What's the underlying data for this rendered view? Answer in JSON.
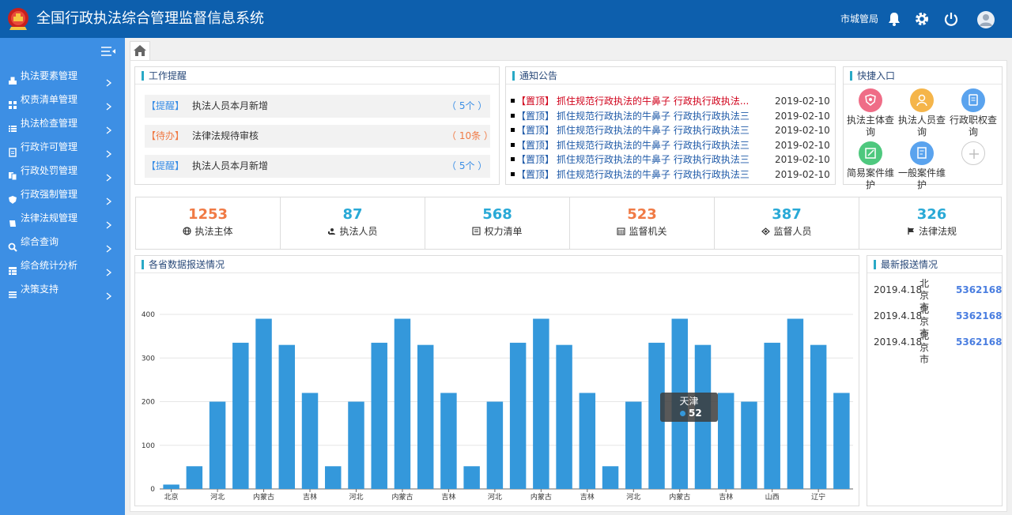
{
  "header": {
    "title": "全国行政执法综合管理监督信息系统",
    "user": "市城管局"
  },
  "sidebar": {
    "items": [
      {
        "label": "执法要素管理",
        "icon": "cubes-icon"
      },
      {
        "label": "权责清单管理",
        "icon": "grid-icon"
      },
      {
        "label": "执法检查管理",
        "icon": "list-icon"
      },
      {
        "label": "行政许可管理",
        "icon": "file-icon"
      },
      {
        "label": "行政处罚管理",
        "icon": "copy-icon"
      },
      {
        "label": "行政强制管理",
        "icon": "shield-icon"
      },
      {
        "label": "法律法规管理",
        "icon": "book-icon"
      },
      {
        "label": "综合查询",
        "icon": "search-icon"
      },
      {
        "label": "综合统计分析",
        "icon": "table-icon"
      },
      {
        "label": "决策支持",
        "icon": "menu-icon"
      }
    ]
  },
  "work": {
    "title": "工作提醒",
    "items": [
      {
        "tag": "【提醒】",
        "text": "执法人员本月新增",
        "count": "（ 5个 ）",
        "tone": "blue"
      },
      {
        "tag": "【待办】",
        "text": "法律法规待审核",
        "count": "（ 10条 ）",
        "tone": "orange"
      },
      {
        "tag": "【提醒】",
        "text": "执法人员本月新增",
        "count": "（ 5个 ）",
        "tone": "blue"
      }
    ]
  },
  "notice": {
    "title": "通知公告",
    "items": [
      {
        "tag": "【置顶】",
        "text": "抓住规范行政执法的牛鼻子 行政执行政执法...",
        "date": "2019-02-10",
        "highlight": true
      },
      {
        "tag": "【置顶】",
        "text": "抓住规范行政执法的牛鼻子 行政执行政执法三",
        "date": "2019-02-10",
        "highlight": false
      },
      {
        "tag": "【置顶】",
        "text": "抓住规范行政执法的牛鼻子 行政执行政执法三",
        "date": "2019-02-10",
        "highlight": false
      },
      {
        "tag": "【置顶】",
        "text": "抓住规范行政执法的牛鼻子 行政执行政执法三",
        "date": "2019-02-10",
        "highlight": false
      },
      {
        "tag": "【置顶】",
        "text": "抓住规范行政执法的牛鼻子 行政执行政执法三",
        "date": "2019-02-10",
        "highlight": false
      },
      {
        "tag": "【置顶】",
        "text": "抓住规范行政执法的牛鼻子 行政执行政执法三",
        "date": "2019-02-10",
        "highlight": false
      }
    ]
  },
  "quick": {
    "title": "快捷入口",
    "items": [
      {
        "label": "执法主体查询",
        "icon": "shield-badge-icon",
        "color": "#ef6d87"
      },
      {
        "label": "执法人员查询",
        "icon": "person-icon",
        "color": "#f5b54a"
      },
      {
        "label": "行政职权查询",
        "icon": "document-icon",
        "color": "#5aa3ee"
      },
      {
        "label": "简易案件维护",
        "icon": "edit-icon",
        "color": "#4ec87e"
      },
      {
        "label": "一般案件维护",
        "icon": "form-icon",
        "color": "#5aa3ee"
      },
      {
        "label": "",
        "icon": "add-icon",
        "color": "#cccccc"
      }
    ]
  },
  "stats": [
    {
      "num": "1253",
      "label": "执法主体",
      "icon": "globe-icon",
      "color": "#f07a45"
    },
    {
      "num": "87",
      "label": "执法人员",
      "icon": "users-icon",
      "color": "#29a9d6"
    },
    {
      "num": "568",
      "label": "权力清单",
      "icon": "list-doc-icon",
      "color": "#29a9d6"
    },
    {
      "num": "523",
      "label": "监督机关",
      "icon": "building-icon",
      "color": "#f07a45"
    },
    {
      "num": "387",
      "label": "监督人员",
      "icon": "supervisor-icon",
      "color": "#29a9d6"
    },
    {
      "num": "326",
      "label": "法律法规",
      "icon": "flag-icon",
      "color": "#29a9d6"
    }
  ],
  "chart_panel": {
    "title": "各省数据报送情况"
  },
  "chart_data": {
    "type": "bar",
    "title": "",
    "xlabel": "",
    "ylabel": "",
    "ylim": [
      0,
      400
    ],
    "yticks": [
      0,
      100,
      200,
      300,
      400
    ],
    "grid": true,
    "legend": "none",
    "bar_color": "#3498db",
    "categories": [
      "北京",
      "",
      "河北",
      "",
      "内蒙古",
      "",
      "吉林",
      "",
      "河北",
      "",
      "内蒙古",
      "",
      "吉林",
      "",
      "河北",
      "",
      "内蒙古",
      "",
      "吉林",
      "",
      "河北",
      "",
      "内蒙古",
      "",
      "吉林",
      "",
      "山西",
      "",
      "辽宁",
      ""
    ],
    "values": [
      10,
      52,
      200,
      335,
      390,
      330,
      220,
      52,
      200,
      335,
      390,
      330,
      220,
      52,
      200,
      335,
      390,
      330,
      220,
      52,
      200,
      335,
      390,
      330,
      220,
      200,
      335,
      390,
      330,
      220
    ]
  },
  "tooltip": {
    "name": "天津",
    "value": "52"
  },
  "latest": {
    "title": "最新报送情况",
    "items": [
      {
        "date": "2019.4.18",
        "city": "北京市",
        "num": "5362168"
      },
      {
        "date": "2019.4.18",
        "city": "北京市",
        "num": "5362168"
      },
      {
        "date": "2019.4.18",
        "city": "北京市",
        "num": "5362168"
      }
    ]
  }
}
